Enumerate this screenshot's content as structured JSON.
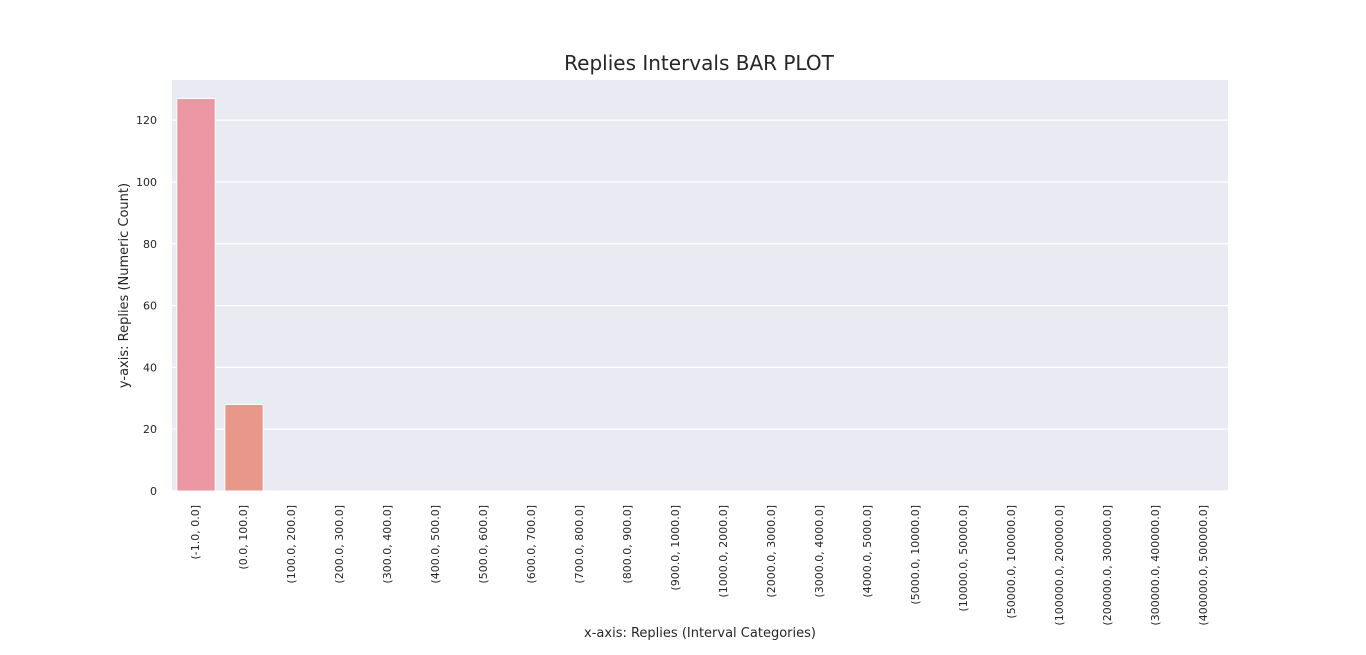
{
  "chart_data": {
    "type": "bar",
    "title": "Replies Intervals BAR PLOT",
    "xlabel": "x-axis: Replies (Interval Categories)",
    "ylabel": "y-axis: Replies (Numeric Count)",
    "categories": [
      "(-1.0, 0.0]",
      "(0.0, 100.0]",
      "(100.0, 200.0]",
      "(200.0, 300.0]",
      "(300.0, 400.0]",
      "(400.0, 500.0]",
      "(500.0, 600.0]",
      "(600.0, 700.0]",
      "(700.0, 800.0]",
      "(800.0, 900.0]",
      "(900.0, 1000.0]",
      "(1000.0, 2000.0]",
      "(2000.0, 3000.0]",
      "(3000.0, 4000.0]",
      "(4000.0, 5000.0]",
      "(5000.0, 10000.0]",
      "(10000.0, 50000.0]",
      "(50000.0, 100000.0]",
      "(100000.0, 200000.0]",
      "(200000.0, 300000.0]",
      "(300000.0, 400000.0]",
      "(400000.0, 500000.0]"
    ],
    "values": [
      127,
      28,
      0,
      0,
      0,
      0,
      0,
      0,
      0,
      0,
      0,
      0,
      0,
      0,
      0,
      0,
      0,
      0,
      0,
      0,
      0,
      0
    ],
    "ylim": [
      0,
      133
    ],
    "yticks": [
      0,
      20,
      40,
      60,
      80,
      100,
      120
    ],
    "grid": true,
    "legend": "none",
    "colors": {
      "plot_background": "#eaeaf2",
      "grid": "#ffffff",
      "bars": [
        "#ea96a3",
        "#e8988a"
      ]
    }
  }
}
